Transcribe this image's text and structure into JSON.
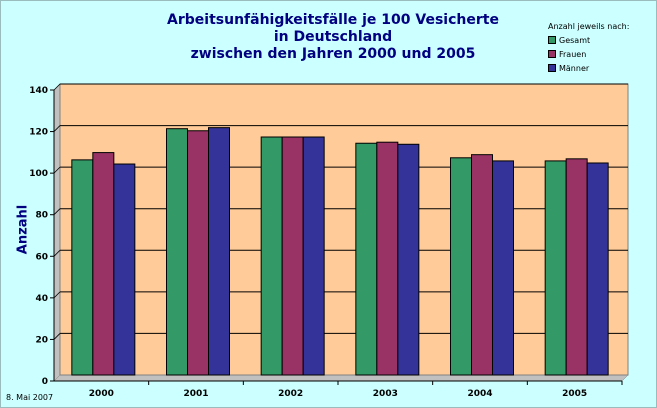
{
  "chart_data": {
    "type": "bar",
    "title_lines": [
      "Arbeitsunfähigkeitsfälle je 100 Vesicherte",
      "in Deutschland",
      "zwischen den Jahren 2000 und 2005"
    ],
    "ylabel": "Anzahl",
    "xlabel": "",
    "categories": [
      "2000",
      "2001",
      "2002",
      "2003",
      "2004",
      "2005"
    ],
    "ylim": [
      0,
      140
    ],
    "yticks": [
      "0",
      "20",
      "40",
      "60",
      "80",
      "100",
      "120",
      "140"
    ],
    "grid": true,
    "legend_position": "top-right",
    "legend_title": "Anzahl jeweils nach:",
    "series": [
      {
        "name": "Gesamt",
        "color": "#339966",
        "values": [
          103.5,
          118.5,
          114.5,
          111.5,
          104.5,
          103
        ]
      },
      {
        "name": "Frauen",
        "color": "#993366",
        "values": [
          107,
          117.5,
          114.5,
          112,
          106,
          104
        ]
      },
      {
        "name": "Männer",
        "color": "#333399",
        "values": [
          101.5,
          119,
          114.5,
          111,
          103,
          102
        ]
      }
    ],
    "plot_background": "#ffcc99"
  },
  "footer": {
    "date": "8. Mai 2007"
  }
}
